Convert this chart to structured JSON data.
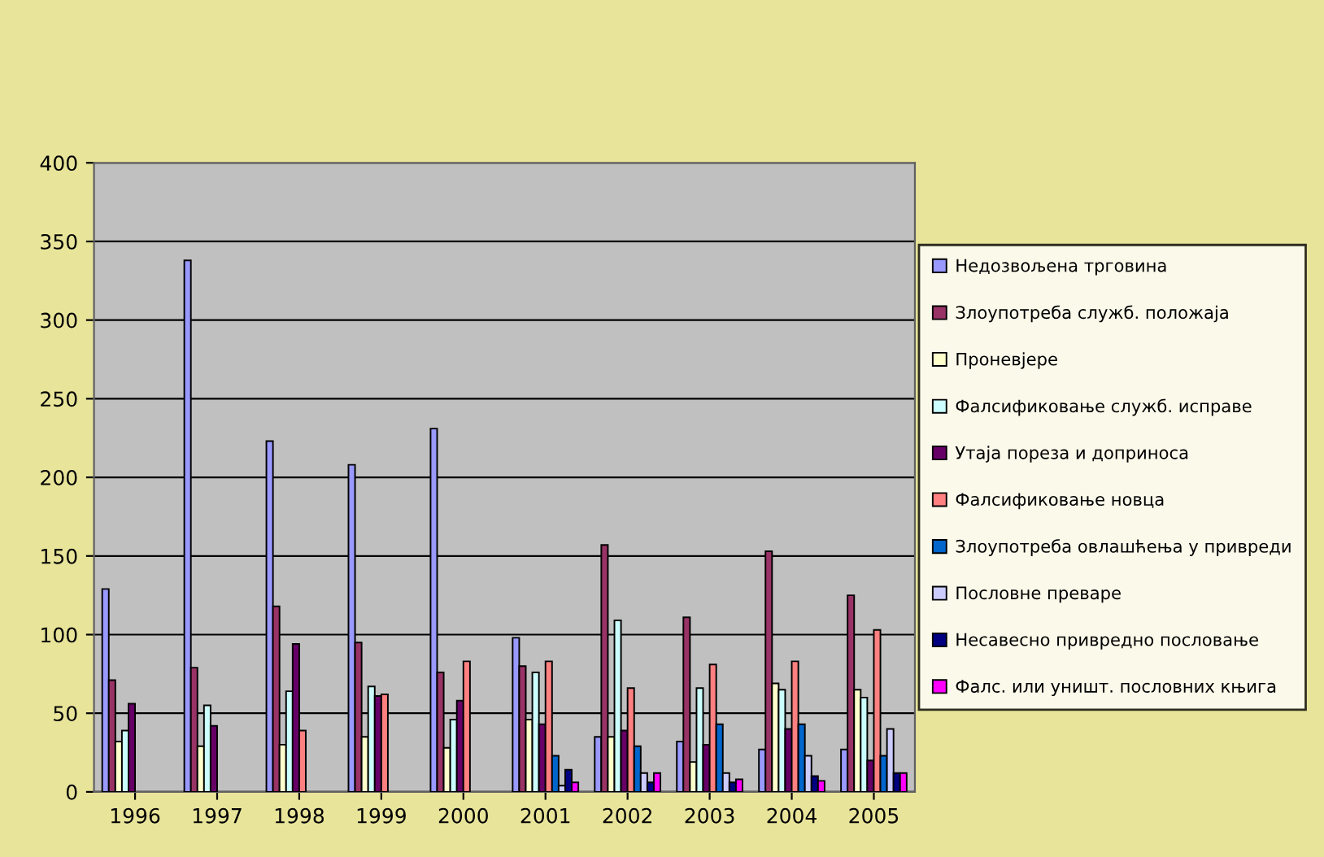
{
  "chart_data": {
    "type": "bar",
    "categories": [
      "1996",
      "1997",
      "1998",
      "1999",
      "2000",
      "2001",
      "2002",
      "2003",
      "2004",
      "2005"
    ],
    "series": [
      {
        "name": "Недозвољена трговина",
        "color": "#9999ff",
        "values": [
          129,
          338,
          223,
          208,
          231,
          98,
          35,
          32,
          27,
          27
        ]
      },
      {
        "name": "Злоупотреба служб. положаја",
        "color": "#993366",
        "values": [
          71,
          79,
          118,
          95,
          76,
          80,
          157,
          111,
          153,
          125
        ]
      },
      {
        "name": "Проневјере",
        "color": "#ffffcc",
        "values": [
          32,
          29,
          30,
          35,
          28,
          46,
          35,
          19,
          69,
          65
        ]
      },
      {
        "name": "Фалсификовање служб. исправе",
        "color": "#ccffff",
        "values": [
          39,
          55,
          64,
          67,
          46,
          76,
          109,
          66,
          65,
          60
        ]
      },
      {
        "name": "Утаја пореза и доприноса",
        "color": "#660066",
        "values": [
          56,
          42,
          94,
          61,
          58,
          43,
          39,
          30,
          40,
          20
        ]
      },
      {
        "name": "Фалсификовање новца",
        "color": "#ff8080",
        "values": [
          null,
          null,
          39,
          62,
          83,
          83,
          66,
          81,
          83,
          103
        ]
      },
      {
        "name": "Злоупотреба овлашћења у привреди",
        "color": "#0066cc",
        "values": [
          null,
          null,
          null,
          null,
          null,
          23,
          29,
          43,
          43,
          23
        ]
      },
      {
        "name": "Пословне преваре",
        "color": "#ccccff",
        "values": [
          null,
          null,
          null,
          null,
          null,
          4,
          12,
          12,
          23,
          40
        ]
      },
      {
        "name": "Несавесно привредно пословање",
        "color": "#000080",
        "values": [
          null,
          null,
          null,
          null,
          null,
          14,
          6,
          6,
          10,
          12
        ]
      },
      {
        "name": "Фалс. или уништ. пословних књига",
        "color": "#ff00ff",
        "values": [
          null,
          null,
          null,
          null,
          null,
          6,
          12,
          8,
          7,
          12
        ]
      }
    ],
    "ylim": [
      0,
      400
    ],
    "yticks": [
      0,
      50,
      100,
      150,
      200,
      250,
      300,
      350,
      400
    ],
    "grid": "y",
    "legend": "right"
  }
}
